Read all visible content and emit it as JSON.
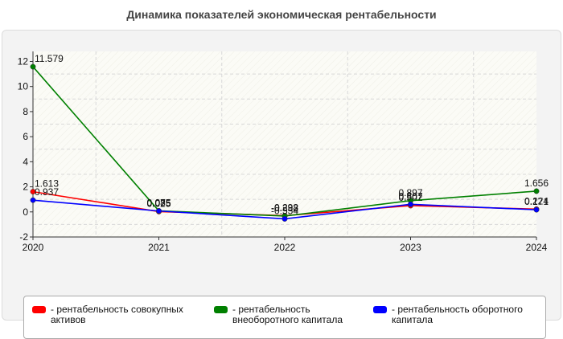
{
  "chart_data": {
    "type": "line",
    "title": "Динамика показателей экономическая рентабельности",
    "x": [
      "2020",
      "2021",
      "2022",
      "2023",
      "2024"
    ],
    "ylim": [
      -2,
      12.8
    ],
    "yticks": [
      -2,
      0,
      2,
      4,
      6,
      8,
      10,
      12
    ],
    "grid": true,
    "legend_position": "bottom",
    "series": [
      {
        "name": "- рентабельность совокупных активов",
        "color": "#ff0000",
        "values": [
          1.613,
          0.025,
          -0.298,
          0.502,
          0.224
        ],
        "labels": [
          "1.613",
          "0.025",
          "-0.298",
          "0.502",
          "0.224"
        ]
      },
      {
        "name": "- рентабельность внеоборотного капитала",
        "color": "#008000",
        "values": [
          11.579,
          0.085,
          -0.332,
          0.897,
          1.656
        ],
        "labels": [
          "11.579",
          "0.085",
          "-0.332",
          "0.897",
          "1.656"
        ]
      },
      {
        "name": "- рентабельность оборотного капитала",
        "color": "#0000ff",
        "values": [
          0.937,
          0.075,
          -0.554,
          0.607,
          0.171
        ],
        "labels": [
          "0.937",
          "0.075",
          "-0.554",
          "0.607",
          "0.171"
        ]
      }
    ]
  }
}
